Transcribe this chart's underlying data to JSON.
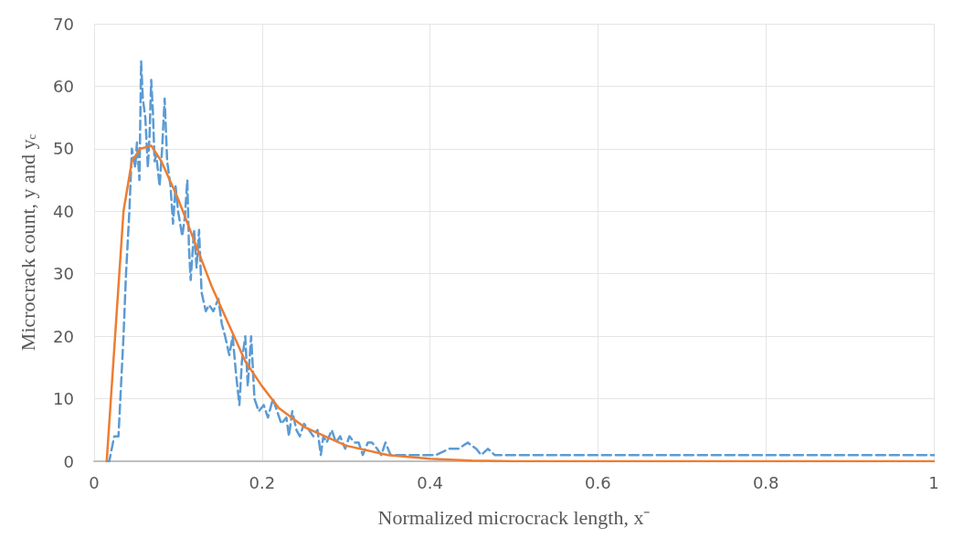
{
  "chart_data": {
    "type": "line",
    "xlabel": "Normalized microcrack length, x⁻",
    "ylabel": "Microcrack count, y and y$_{c}$",
    "xlim": [
      0,
      1
    ],
    "xticks": [
      0,
      0.2,
      0.4,
      0.6,
      0.8,
      1
    ],
    "ylim": [
      0,
      70
    ],
    "yticks": [
      0,
      10,
      20,
      30,
      40,
      50,
      60,
      70
    ],
    "grid": true,
    "marker": "none",
    "series": [
      {
        "color": "#5b9bd5",
        "line_style": "dashed",
        "x": [
          0.015,
          0.018,
          0.024,
          0.029,
          0.035,
          0.038,
          0.042,
          0.045,
          0.049,
          0.051,
          0.054,
          0.056,
          0.058,
          0.061,
          0.064,
          0.066,
          0.068,
          0.07,
          0.072,
          0.074,
          0.078,
          0.081,
          0.084,
          0.087,
          0.091,
          0.094,
          0.097,
          0.1,
          0.105,
          0.108,
          0.111,
          0.113,
          0.115,
          0.119,
          0.122,
          0.125,
          0.128,
          0.133,
          0.137,
          0.142,
          0.148,
          0.152,
          0.156,
          0.161,
          0.165,
          0.169,
          0.173,
          0.176,
          0.18,
          0.183,
          0.187,
          0.191,
          0.196,
          0.202,
          0.207,
          0.213,
          0.218,
          0.223,
          0.229,
          0.232,
          0.236,
          0.241,
          0.245,
          0.25,
          0.256,
          0.261,
          0.266,
          0.27,
          0.273,
          0.277,
          0.283,
          0.288,
          0.293,
          0.299,
          0.304,
          0.31,
          0.315,
          0.32,
          0.326,
          0.331,
          0.337,
          0.342,
          0.347,
          0.353,
          0.364,
          0.385,
          0.407,
          0.423,
          0.434,
          0.445,
          0.455,
          0.461,
          0.469,
          0.477,
          0.493,
          1.0
        ],
        "values": [
          0,
          0,
          4,
          4,
          20,
          30,
          40,
          50,
          47,
          51,
          45,
          64,
          58,
          55,
          47,
          52,
          61,
          56,
          48,
          49,
          44,
          50,
          58,
          48,
          44,
          38,
          44,
          40,
          36,
          39,
          45,
          34,
          29,
          37,
          31,
          37,
          27,
          24,
          25,
          24,
          26,
          22,
          20,
          17,
          20,
          14,
          9,
          16,
          20,
          12,
          20,
          10,
          8,
          9,
          7,
          10,
          8,
          6,
          7,
          4,
          8,
          5,
          4,
          6,
          5,
          4,
          5,
          1,
          4,
          3,
          5,
          3,
          4,
          2,
          4,
          3,
          3,
          1,
          3,
          3,
          2,
          1,
          3,
          1,
          1,
          1,
          1,
          2,
          2,
          3,
          2,
          1,
          2,
          1,
          1,
          1
        ]
      },
      {
        "color": "#ed7d31",
        "line_style": "solid",
        "x": [
          0.015,
          0.025,
          0.035,
          0.045,
          0.055,
          0.068,
          0.08,
          0.1,
          0.12,
          0.14,
          0.16,
          0.18,
          0.2,
          0.22,
          0.25,
          0.3,
          0.35,
          0.4,
          0.45,
          0.5,
          0.6,
          0.8,
          1.0
        ],
        "values": [
          0,
          20,
          40,
          48,
          50,
          50.5,
          48,
          42,
          35,
          28,
          22,
          16,
          12,
          8.5,
          5.5,
          2.5,
          1,
          0.4,
          0.1,
          0,
          0,
          0,
          0
        ]
      }
    ]
  }
}
